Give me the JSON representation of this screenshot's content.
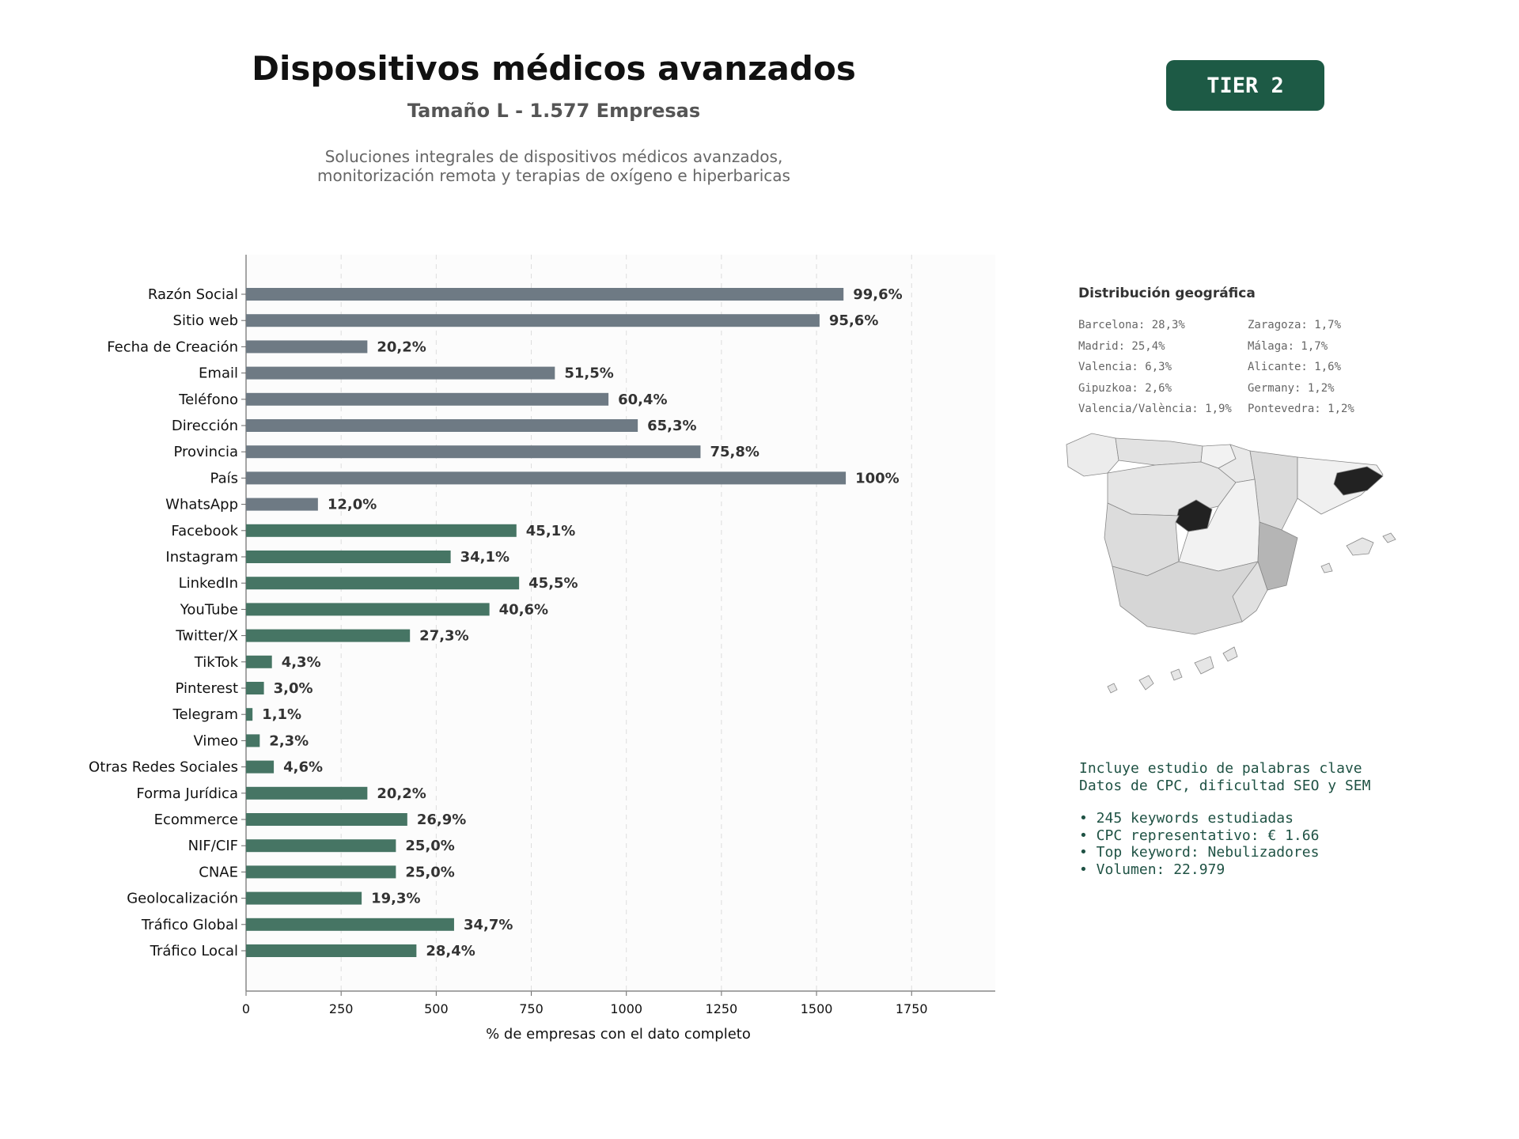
{
  "header": {
    "title": "Dispositivos médicos avanzados",
    "subtitle": "Tamaño L - 1.577 Empresas",
    "description_line1": "Soluciones integrales de dispositivos médicos avanzados,",
    "description_line2": "monitorización remota y terapias de oxígeno e hiperbaricas",
    "tier_label": "TIER 2"
  },
  "colors": {
    "tier_bg": "#1d5a45",
    "bar_gray": "#6e7a84",
    "bar_green": "#467564",
    "map_highlight": "#222222",
    "text_green": "#1f5244"
  },
  "chart_data": {
    "type": "bar",
    "orientation": "horizontal",
    "xlabel": "% de empresas con el dato completo",
    "xticks": [
      0,
      250,
      500,
      750,
      1000,
      1250,
      1500,
      1750
    ],
    "xlim": [
      0,
      1970
    ],
    "grid": "vertical dashed",
    "categories": [
      "Razón Social",
      "Sitio web",
      "Fecha de Creación",
      "Email",
      "Teléfono",
      "Dirección",
      "Provincia",
      "País",
      "WhatsApp",
      "Facebook",
      "Instagram",
      "LinkedIn",
      "YouTube",
      "Twitter/X",
      "TikTok",
      "Pinterest",
      "Telegram",
      "Vimeo",
      "Otras Redes Sociales",
      "Forma Jurídica",
      "Ecommerce",
      "NIF/CIF",
      "CNAE",
      "Geolocalización",
      "Tráfico Global",
      "Tráfico Local"
    ],
    "values": [
      1571,
      1508,
      319,
      812,
      953,
      1030,
      1195,
      1577,
      189,
      711,
      538,
      718,
      640,
      431,
      68,
      47,
      17,
      36,
      73,
      319,
      424,
      394,
      394,
      304,
      547,
      448
    ],
    "labels": [
      "99,6%",
      "95,6%",
      "20,2%",
      "51,5%",
      "60,4%",
      "65,3%",
      "75,8%",
      "100%",
      "12,0%",
      "45,1%",
      "34,1%",
      "45,5%",
      "40,6%",
      "27,3%",
      "4,3%",
      "3,0%",
      "1,1%",
      "2,3%",
      "4,6%",
      "20,2%",
      "26,9%",
      "25,0%",
      "25,0%",
      "19,3%",
      "34,7%",
      "28,4%"
    ],
    "group": [
      "gray",
      "gray",
      "gray",
      "gray",
      "gray",
      "gray",
      "gray",
      "gray",
      "gray",
      "green",
      "green",
      "green",
      "green",
      "green",
      "green",
      "green",
      "green",
      "green",
      "green",
      "green",
      "green",
      "green",
      "green",
      "green",
      "green",
      "green"
    ]
  },
  "geo": {
    "title": "Distribución geográfica",
    "items": [
      "Barcelona: 28,3%",
      "Zaragoza: 1,7%",
      "Madrid: 25,4%",
      "Málaga: 1,7%",
      "Valencia: 6,3%",
      "Alicante: 1,6%",
      "Gipuzkoa: 2,6%",
      "Germany: 1,2%",
      "Valencia/València: 1,9%",
      "Pontevedra: 1,2%"
    ]
  },
  "keywords": {
    "line1": "Incluye estudio de palabras clave",
    "line2": "Datos de CPC, dificultad SEO y SEM",
    "bullet1": "• 245 keywords estudiadas",
    "bullet2": "• CPC representativo: € 1.66",
    "bullet3": "• Top keyword: Nebulizadores",
    "bullet4": "• Volumen: 22.979"
  }
}
